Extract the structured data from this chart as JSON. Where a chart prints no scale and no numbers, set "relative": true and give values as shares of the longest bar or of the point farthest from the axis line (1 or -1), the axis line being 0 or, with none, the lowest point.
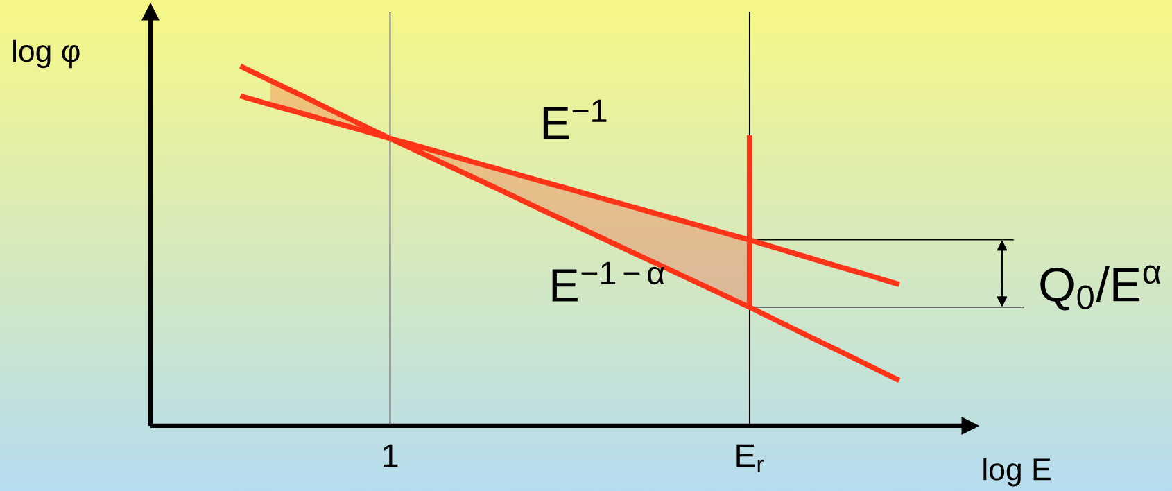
{
  "chart_data": {
    "type": "line",
    "relative": true,
    "xlabel": "log E",
    "ylabel": "log φ",
    "grid": "x",
    "categories": [
      null,
      null,
      null,
      null,
      null,
      null,
      null,
      null,
      "1",
      null,
      null,
      null,
      null,
      null,
      null,
      null,
      null,
      null,
      null,
      null,
      "E$_{r}$",
      null,
      null,
      null,
      null,
      null,
      null,
      null
    ],
    "series": [
      {
        "name": "E$^{−1}$",
        "color": "#ff3418",
        "values": [
          null,
          null,
          null,
          0.917,
          0.893,
          0.87,
          0.846,
          0.823,
          0.799,
          0.776,
          0.752,
          0.728,
          0.705,
          0.681,
          0.658,
          0.634,
          0.611,
          0.587,
          0.564,
          0.54,
          0.517,
          0.492,
          0.467,
          0.442,
          0.418,
          0.393,
          null,
          null
        ]
      },
      {
        "name": "E$^{−1−α}$",
        "color": "#ff3418",
        "values": [
          null,
          null,
          null,
          1.0,
          0.96,
          0.92,
          0.879,
          0.839,
          0.799,
          0.76,
          0.721,
          0.682,
          0.643,
          0.603,
          0.564,
          0.525,
          0.486,
          0.447,
          0.408,
          0.369,
          0.33,
          0.289,
          0.248,
          0.208,
          0.167,
          0.126,
          null,
          null
        ],
        "lower": [
          null,
          null,
          null,
          null,
          0.893,
          0.87,
          0.846,
          0.823,
          0.799,
          0.76,
          0.721,
          0.682,
          0.643,
          0.603,
          0.564,
          0.525,
          0.486,
          0.447,
          0.408,
          0.369,
          0.33,
          null,
          null,
          null,
          null,
          null,
          null,
          null
        ],
        "upper": [
          null,
          null,
          null,
          null,
          0.96,
          0.92,
          0.879,
          0.839,
          0.799,
          0.776,
          0.752,
          0.728,
          0.705,
          0.681,
          0.658,
          0.634,
          0.611,
          0.587,
          0.564,
          0.54,
          0.517,
          null,
          null,
          null,
          null,
          null,
          null,
          null
        ]
      },
      {
        "color": "#ff3418",
        "x": [
          "E$_{r}$",
          "E$_{r}$"
        ],
        "values": [
          0.808,
          0.333
        ]
      }
    ],
    "annotations": [
      "Q$_{0}$/E$^{α}$"
    ]
  }
}
